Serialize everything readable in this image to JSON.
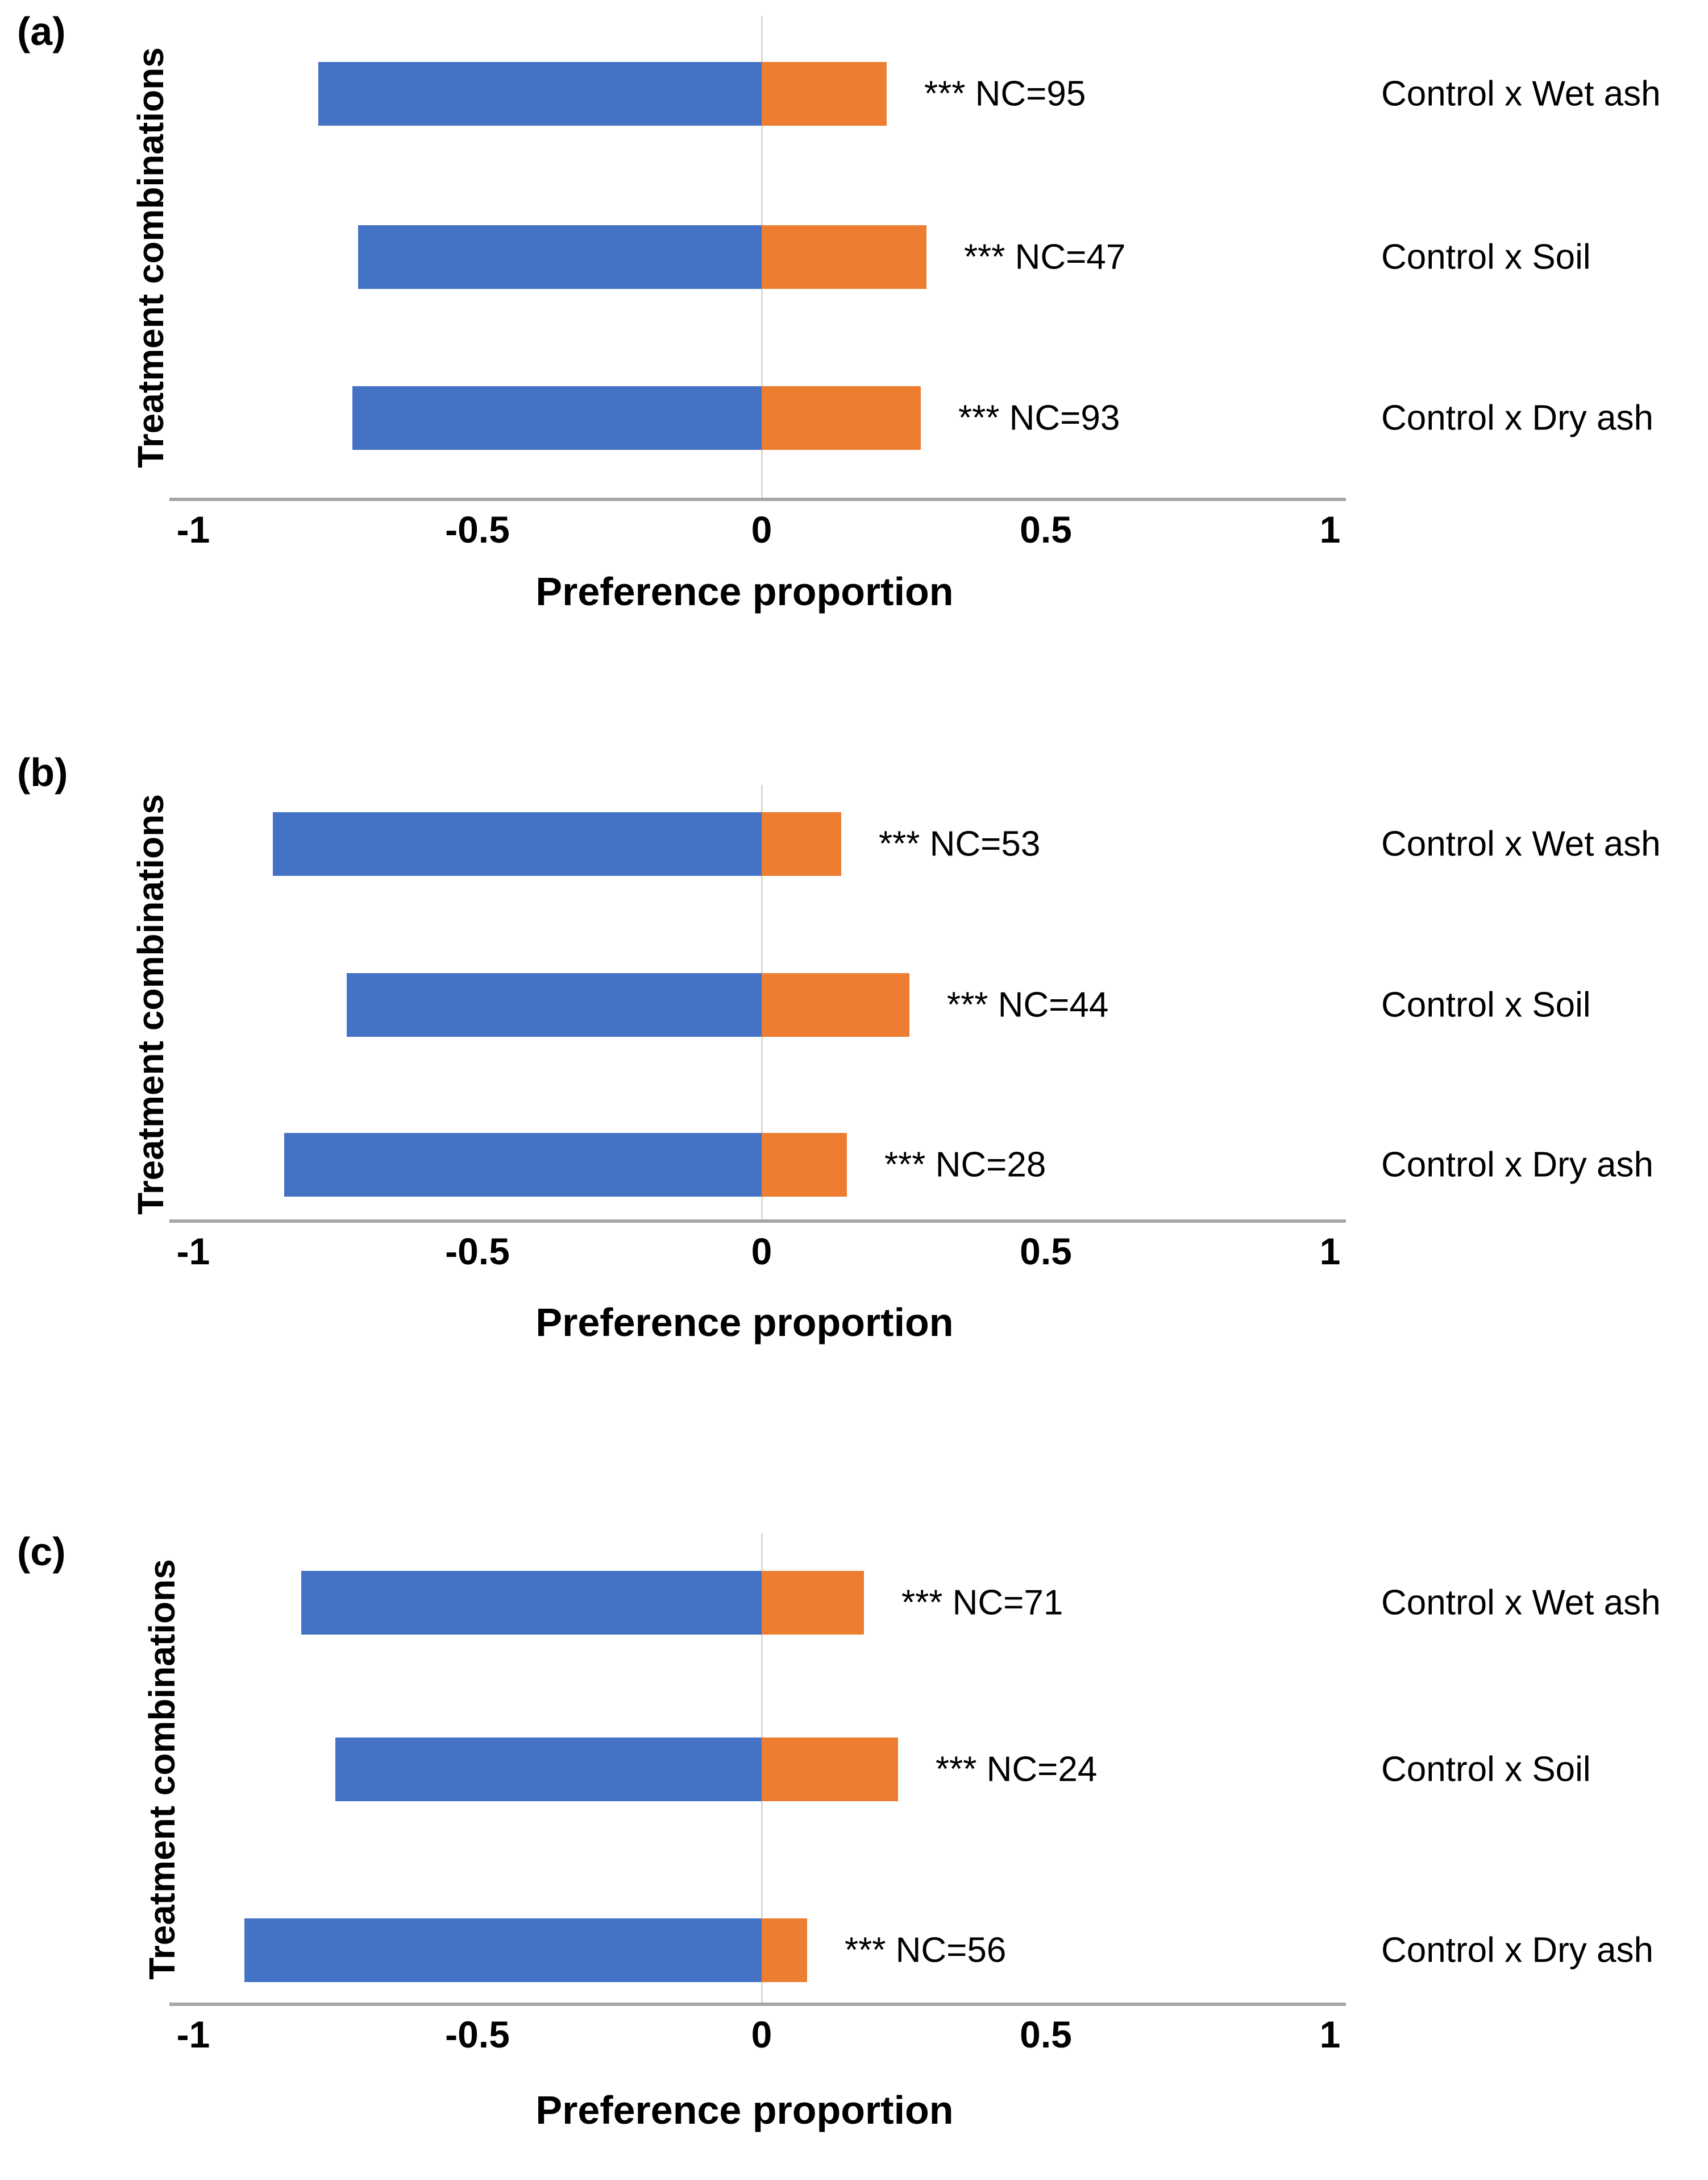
{
  "colors": {
    "negative_bar": "#4472C4",
    "positive_bar": "#ED7D31",
    "axis_line": "#A6A6A6",
    "zero_gridline": "#D9D9D9",
    "text": "#000000"
  },
  "chart_data": {
    "type": "bar",
    "orientation": "horizontal-diverging",
    "xlim": [
      -1,
      1
    ],
    "x_tick_values": [
      -1,
      -0.5,
      0,
      0.5,
      1
    ],
    "grid": "zero-line-only",
    "legend": "none",
    "panels": [
      {
        "letter": "(a)",
        "xlabel": "Preference proportion",
        "ylabel": "Treatment combinations",
        "x_tick_labels": [
          "-1",
          "-0.5",
          "0",
          "0.5",
          "1"
        ],
        "rows": [
          {
            "label": "Control x Wet ash",
            "annotation": "*** NC=95",
            "nc": 95,
            "significance": "***",
            "blue": -0.78,
            "orange": 0.22
          },
          {
            "label": "Control x Soil",
            "annotation": "*** NC=47",
            "nc": 47,
            "significance": "***",
            "blue": -0.71,
            "orange": 0.29
          },
          {
            "label": "Control x Dry ash",
            "annotation": "*** NC=93",
            "nc": 93,
            "significance": "***",
            "blue": -0.72,
            "orange": 0.28
          }
        ]
      },
      {
        "letter": "(b)",
        "xlabel": "Preference proportion",
        "ylabel": "Treatment combinations",
        "x_tick_labels": [
          "-1",
          "-0.5",
          "0",
          "0.5",
          "1"
        ],
        "rows": [
          {
            "label": "Control x Wet ash",
            "annotation": "*** NC=53",
            "nc": 53,
            "significance": "***",
            "blue": -0.86,
            "orange": 0.14
          },
          {
            "label": "Control x Soil",
            "annotation": "*** NC=44",
            "nc": 44,
            "significance": "***",
            "blue": -0.73,
            "orange": 0.26
          },
          {
            "label": "Control x Dry ash",
            "annotation": "*** NC=28",
            "nc": 28,
            "significance": "***",
            "blue": -0.84,
            "orange": 0.15
          }
        ]
      },
      {
        "letter": "(c)",
        "xlabel": "Preference proportion",
        "ylabel": "Treatment combinations",
        "x_tick_labels": [
          "-1",
          "-0.5",
          "0",
          "0.5",
          "1"
        ],
        "rows": [
          {
            "label": "Control x Wet ash",
            "annotation": "*** NC=71",
            "nc": 71,
            "significance": "***",
            "blue": -0.81,
            "orange": 0.18
          },
          {
            "label": "Control x Soil",
            "annotation": "*** NC=24",
            "nc": 24,
            "significance": "***",
            "blue": -0.75,
            "orange": 0.24
          },
          {
            "label": "Control x Dry ash",
            "annotation": "*** NC=56",
            "nc": 56,
            "significance": "***",
            "blue": -0.91,
            "orange": 0.08
          }
        ]
      }
    ]
  }
}
